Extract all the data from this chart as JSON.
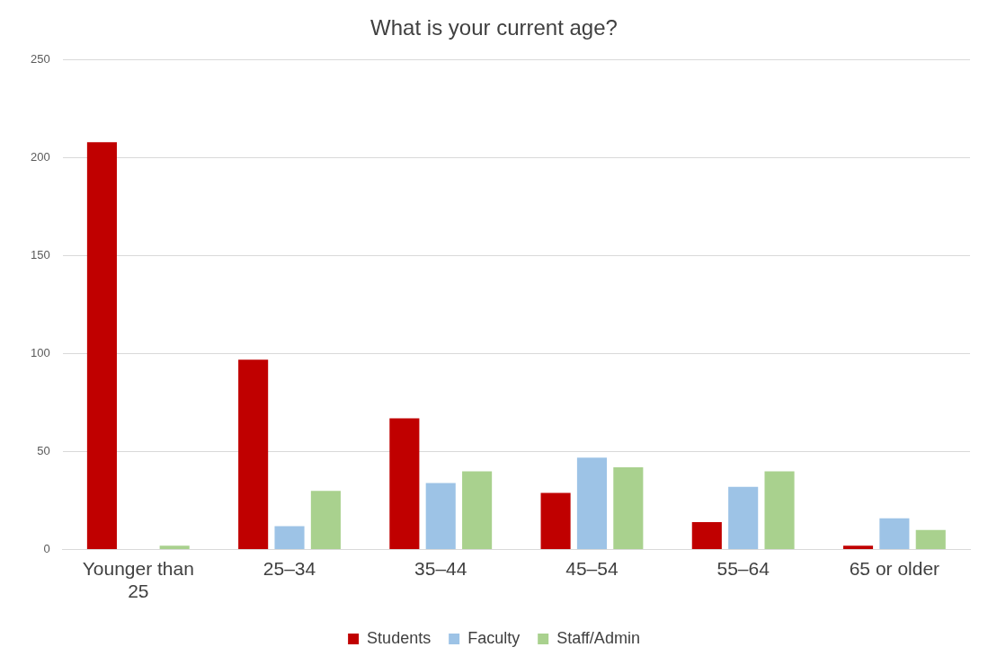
{
  "chart_data": {
    "type": "bar",
    "title": "What is your current age?",
    "categories": [
      "Younger than 25",
      "25–34",
      "35–44",
      "45–54",
      "55–64",
      "65 or older"
    ],
    "series": [
      {
        "name": "Students",
        "color": "#c00000",
        "values": [
          208,
          97,
          67,
          29,
          14,
          2
        ]
      },
      {
        "name": "Faculty",
        "color": "#9dc3e6",
        "values": [
          0,
          12,
          34,
          47,
          32,
          16
        ]
      },
      {
        "name": "Staff/Admin",
        "color": "#a9d18e",
        "values": [
          2,
          30,
          40,
          42,
          40,
          10
        ]
      }
    ],
    "ylim": [
      0,
      250
    ],
    "yticks": [
      0,
      50,
      100,
      150,
      200,
      250
    ],
    "grid": "y",
    "legend": "bottom"
  }
}
